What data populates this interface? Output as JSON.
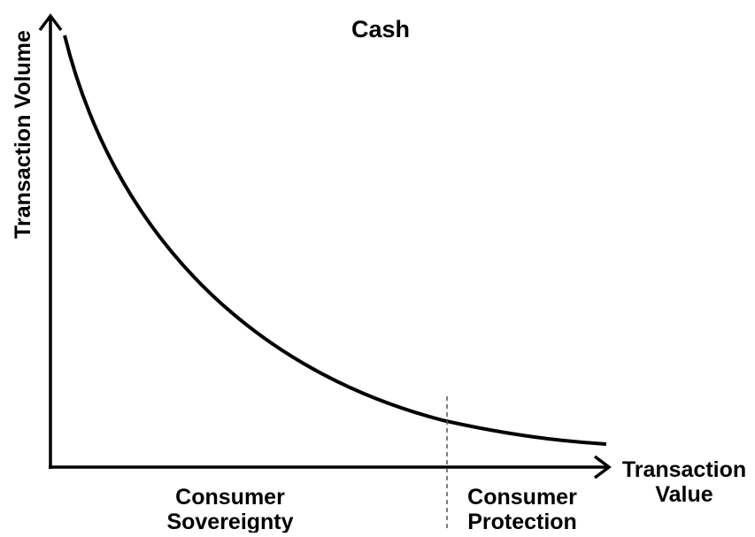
{
  "title": "Cash",
  "y_axis_label": "Transaction Volume",
  "x_axis_label": [
    "Transaction",
    "Value"
  ],
  "regions": [
    {
      "label": [
        "Consumer",
        "Sovereignty"
      ]
    },
    {
      "label": [
        "Consumer",
        "Protection"
      ]
    }
  ]
}
